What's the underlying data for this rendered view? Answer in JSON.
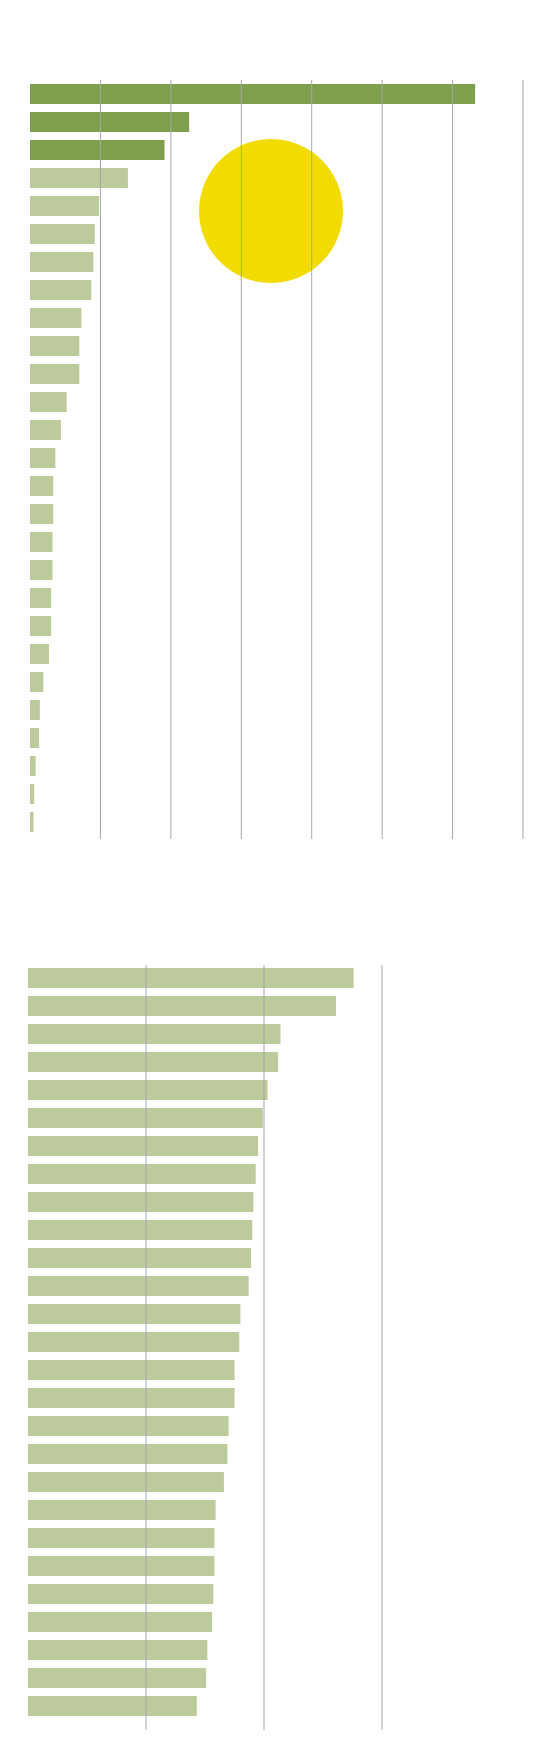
{
  "chart_data": [
    {
      "type": "bar",
      "orientation": "horizontal",
      "grid": true,
      "values": [
        6.32,
        2.26,
        1.91,
        1.39,
        0.98,
        0.92,
        0.9,
        0.87,
        0.73,
        0.7,
        0.7,
        0.52,
        0.44,
        0.36,
        0.33,
        0.33,
        0.32,
        0.32,
        0.3,
        0.3,
        0.27,
        0.19,
        0.14,
        0.13,
        0.08,
        0.06,
        0.05
      ],
      "colors": [
        "#7f9f4e",
        "#7f9f4e",
        "#7f9f4e",
        "#bdcb9c",
        "#bdcb9c",
        "#bdcb9c",
        "#bdcb9c",
        "#bdcb9c",
        "#bdcb9c",
        "#bdcb9c",
        "#bdcb9c",
        "#bdcb9c",
        "#bdcb9c",
        "#bdcb9c",
        "#bdcb9c",
        "#bdcb9c",
        "#bdcb9c",
        "#bdcb9c",
        "#bdcb9c",
        "#bdcb9c",
        "#bdcb9c",
        "#bdcb9c",
        "#bdcb9c",
        "#bdcb9c",
        "#bdcb9c",
        "#bdcb9c",
        "#bdcb9c"
      ],
      "xlim": [
        0,
        7
      ],
      "xticks": [
        1,
        2,
        3,
        4,
        5,
        6,
        7
      ]
    },
    {
      "type": "bar",
      "orientation": "horizontal",
      "grid": true,
      "values": [
        2.76,
        2.61,
        2.14,
        2.12,
        2.03,
        1.99,
        1.95,
        1.93,
        1.91,
        1.9,
        1.89,
        1.87,
        1.8,
        1.79,
        1.75,
        1.75,
        1.7,
        1.69,
        1.66,
        1.59,
        1.58,
        1.58,
        1.57,
        1.56,
        1.52,
        1.51,
        1.43
      ],
      "colors": [
        "#bdcb9c",
        "#bdcb9c",
        "#bdcb9c",
        "#bdcb9c",
        "#bdcb9c",
        "#bdcb9c",
        "#bdcb9c",
        "#bdcb9c",
        "#bdcb9c",
        "#bdcb9c",
        "#bdcb9c",
        "#bdcb9c",
        "#bdcb9c",
        "#bdcb9c",
        "#bdcb9c",
        "#bdcb9c",
        "#bdcb9c",
        "#bdcb9c",
        "#bdcb9c",
        "#bdcb9c",
        "#bdcb9c",
        "#bdcb9c",
        "#bdcb9c",
        "#bdcb9c",
        "#bdcb9c",
        "#bdcb9c",
        "#bdcb9c"
      ],
      "xlim": [
        0,
        3
      ],
      "xticks": [
        1,
        2,
        3
      ]
    }
  ]
}
